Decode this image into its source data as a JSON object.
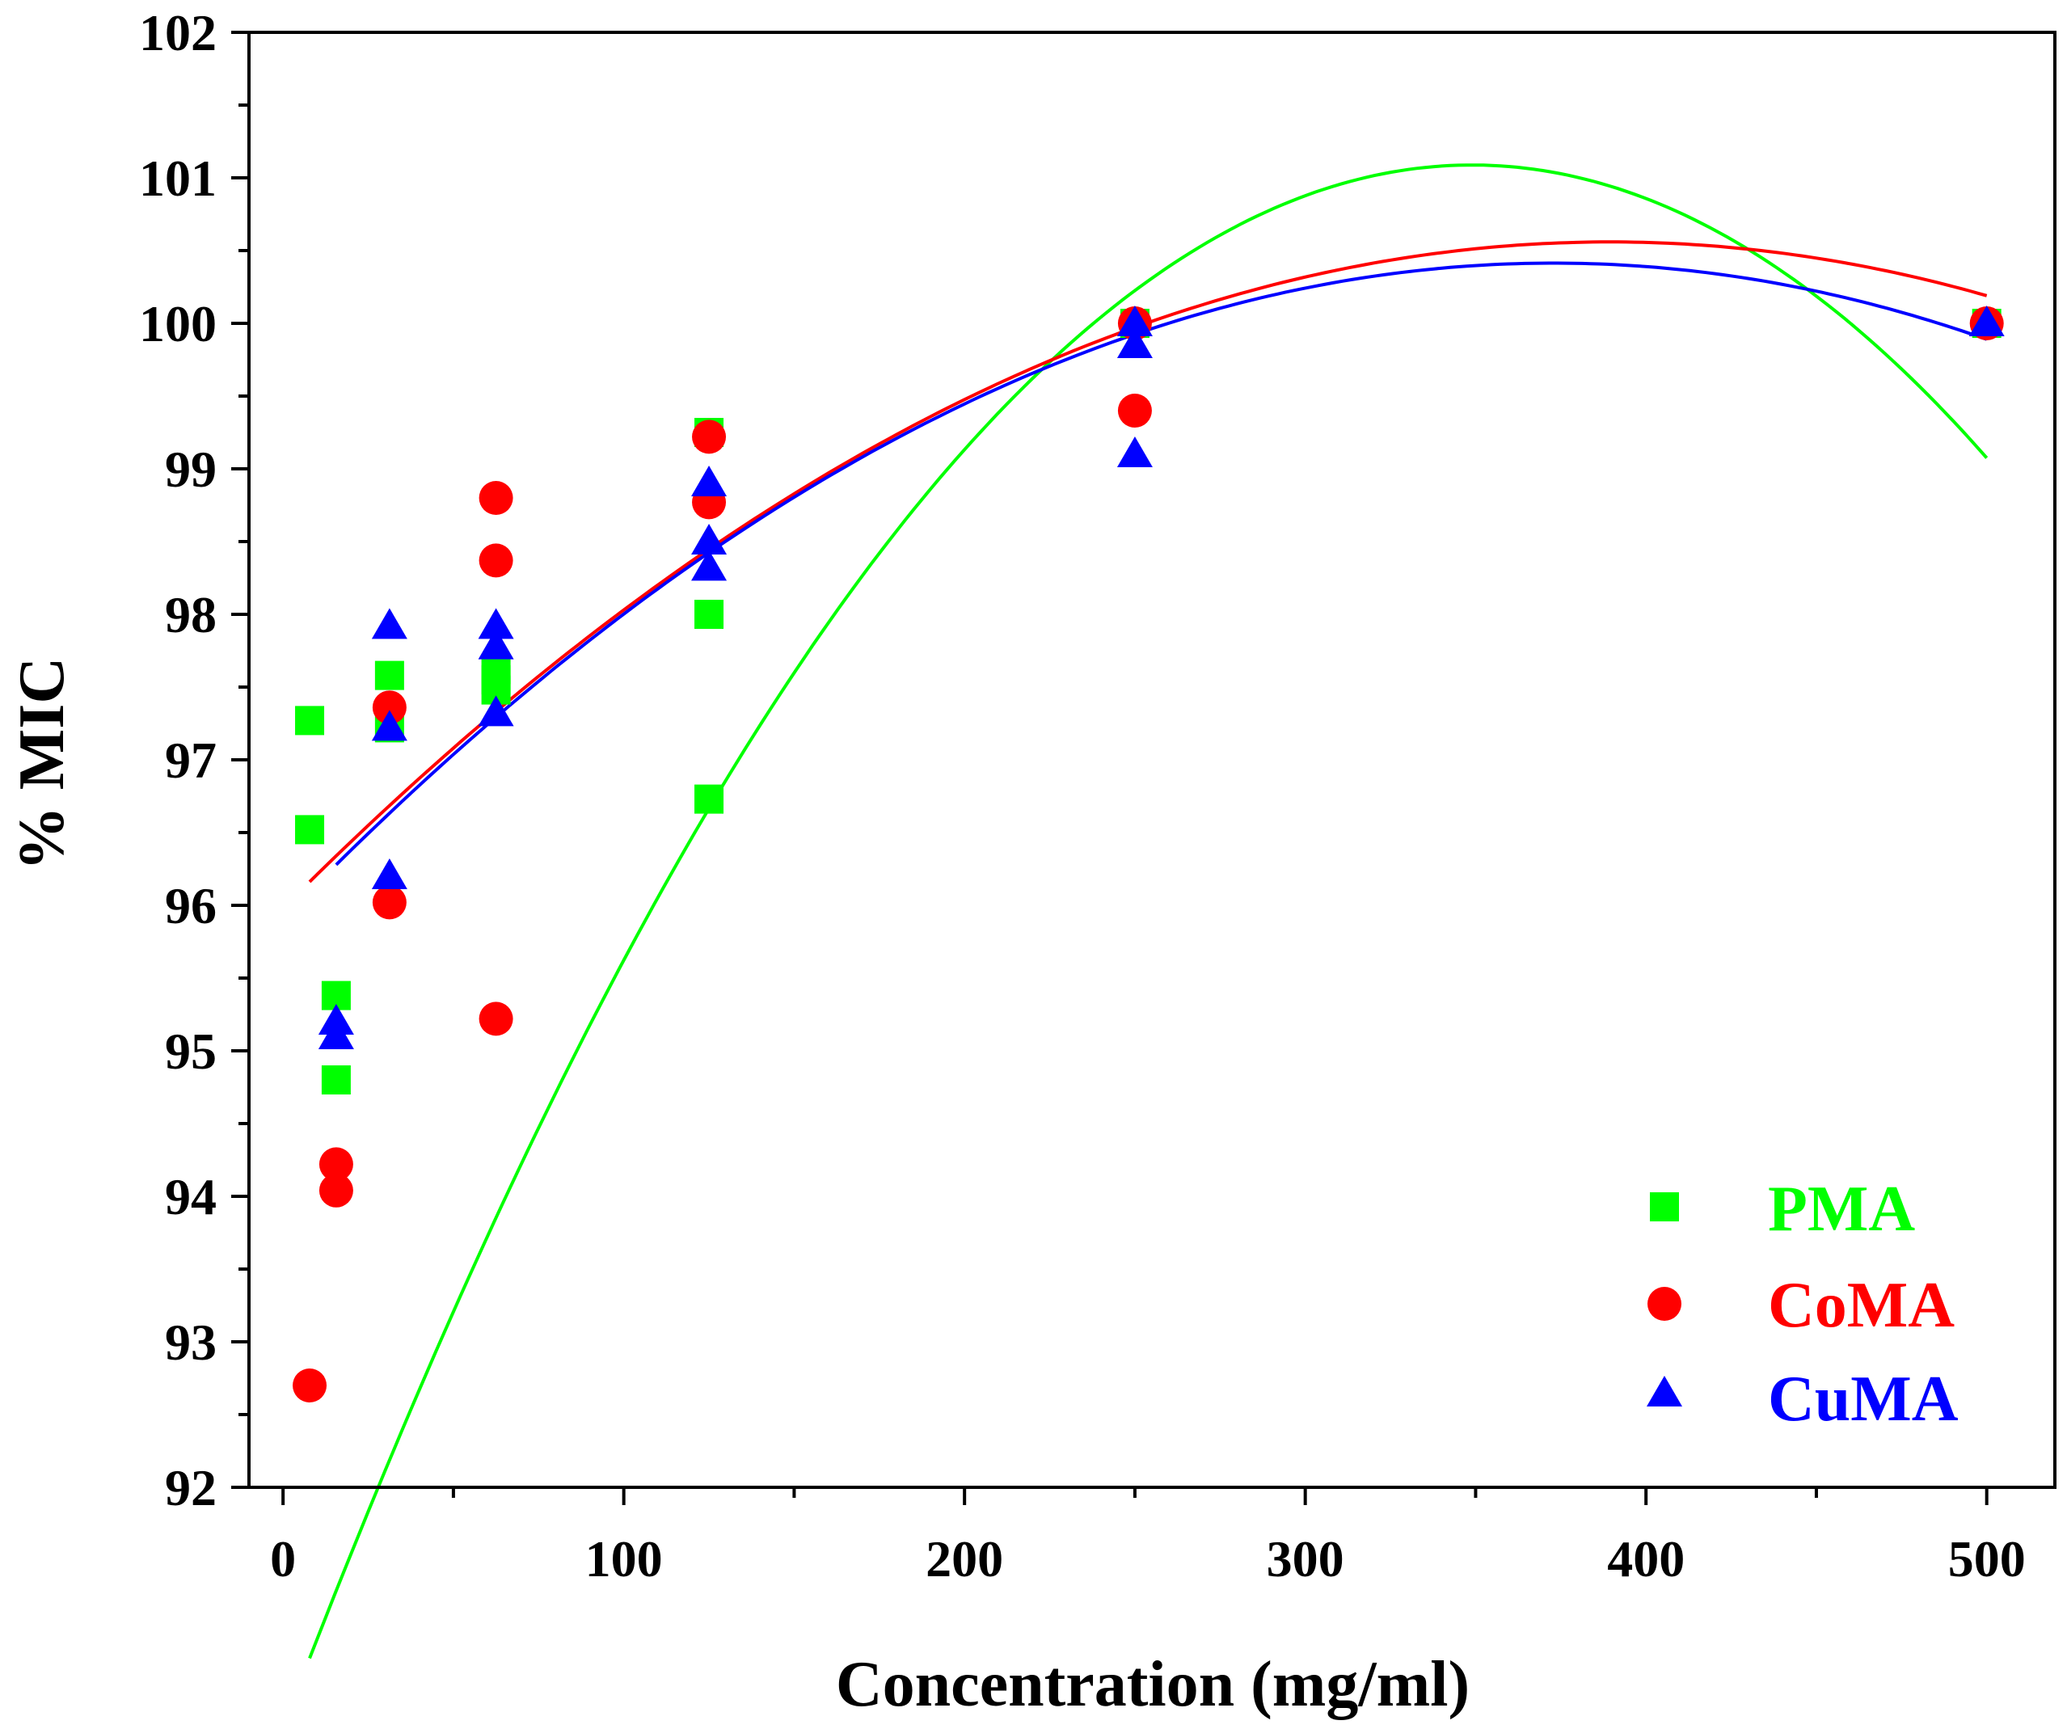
{
  "chart_data": {
    "type": "scatter",
    "title": "",
    "xlabel": "Concentration (mg/ml)",
    "ylabel": "% MIC",
    "xlim": [
      -10,
      520
    ],
    "ylim": [
      92,
      102
    ],
    "xticks": [
      0,
      100,
      200,
      300,
      400,
      500
    ],
    "xtick_labels": [
      "0",
      "100",
      "200",
      "300",
      "400",
      "500"
    ],
    "yticks": [
      92,
      93,
      94,
      95,
      96,
      97,
      98,
      99,
      100,
      101,
      102
    ],
    "ytick_labels": [
      "92",
      "93",
      "94",
      "95",
      "96",
      "97",
      "98",
      "99",
      "100",
      "101",
      "102"
    ],
    "legend_position": "bottom-right",
    "series": [
      {
        "name": "PMA",
        "color": "#00ff00",
        "marker": "square",
        "x": [
          7.8,
          7.8,
          15.6,
          15.6,
          31.25,
          31.25,
          62.5,
          62.5,
          62.5,
          125,
          125,
          125,
          250,
          500
        ],
        "y": [
          97.27,
          96.52,
          95.38,
          94.8,
          97.58,
          97.22,
          97.62,
          97.48,
          97.55,
          99.25,
          98.0,
          96.73,
          100.0,
          100.0
        ],
        "fit": {
          "kind": "quadratic",
          "x_range": [
            7.8,
            500
          ],
          "a": -8.82e-05,
          "b": 0.06155,
          "c": 90.35
        }
      },
      {
        "name": "CoMA",
        "color": "#ff0000",
        "marker": "circle",
        "x": [
          7.8,
          15.6,
          15.6,
          31.25,
          31.25,
          62.5,
          62.5,
          62.5,
          125,
          125,
          250,
          250,
          500
        ],
        "y": [
          92.7,
          94.22,
          94.04,
          97.36,
          96.02,
          98.8,
          98.37,
          95.22,
          99.22,
          98.77,
          100.0,
          99.4,
          100.0
        ],
        "fit": {
          "kind": "quadratic",
          "x_range": [
            7.8,
            500
          ],
          "a": -3.02e-05,
          "b": 0.02352,
          "c": 95.98
        }
      },
      {
        "name": "CuMA",
        "color": "#0000ff",
        "marker": "triangle",
        "x": [
          15.6,
          15.6,
          31.25,
          31.25,
          31.25,
          62.5,
          62.5,
          62.5,
          125,
          125,
          125,
          250,
          250,
          250,
          500
        ],
        "y": [
          95.2,
          95.1,
          97.92,
          97.22,
          96.2,
          97.92,
          97.78,
          97.32,
          98.9,
          98.5,
          98.32,
          100.0,
          99.85,
          99.1,
          100.0
        ],
        "fit": {
          "kind": "quadratic",
          "x_range": [
            15.6,
            500
          ],
          "a": -3.24e-05,
          "b": 0.02416,
          "c": 95.91
        }
      }
    ]
  }
}
